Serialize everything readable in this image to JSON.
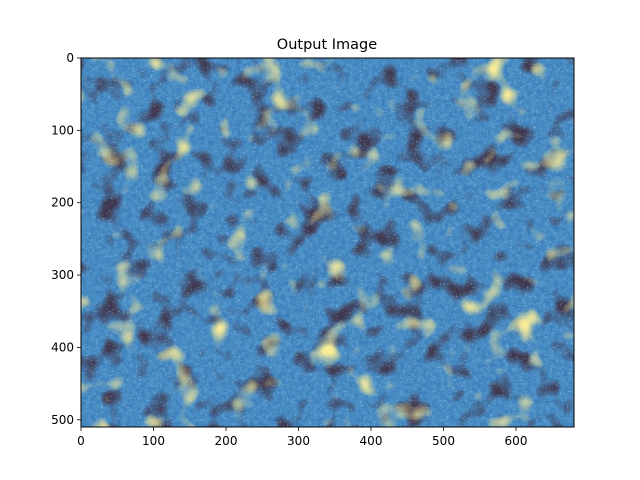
{
  "figure": {
    "title": "Output Image",
    "background": "#ffffff"
  },
  "image": {
    "description_colors": [
      "#0b0a12",
      "#1b3f73",
      "#2f73b3",
      "#4a97d6",
      "#9bbfd8",
      "#f0d24a",
      "#f7e07a",
      "#7a4a1a"
    ],
    "dominant_palette": "blue-black-yellow mottled texture"
  },
  "axes": {
    "x_ticks": [
      "0",
      "100",
      "200",
      "300",
      "400",
      "500",
      "600"
    ],
    "y_ticks": [
      "0",
      "100",
      "200",
      "300",
      "400",
      "500"
    ],
    "x_extent": [
      0,
      680
    ],
    "y_extent": [
      0,
      510
    ]
  }
}
